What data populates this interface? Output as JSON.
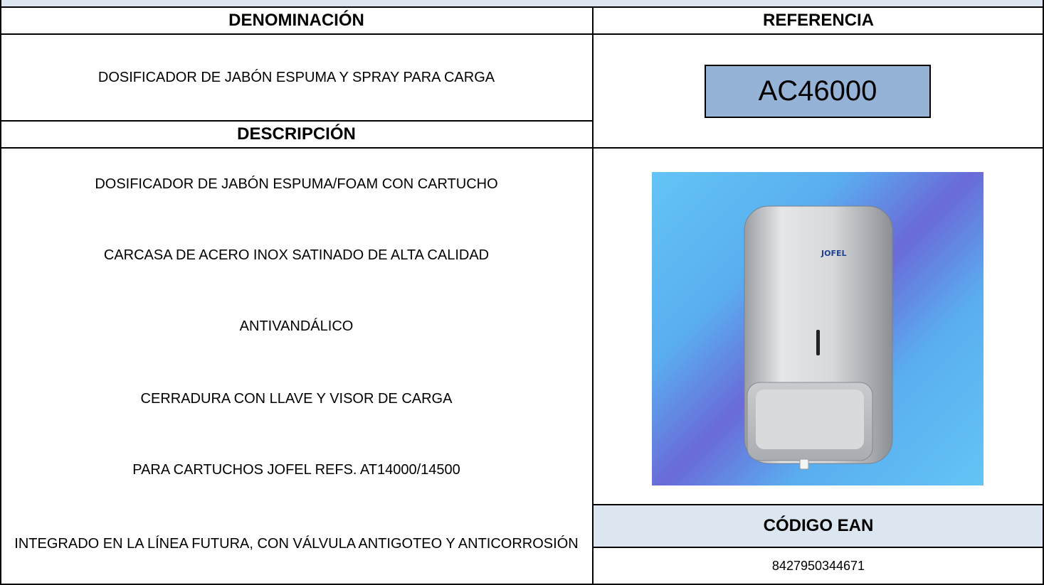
{
  "headers": {
    "denominacion": "DENOMINACIÓN",
    "referencia": "REFERENCIA",
    "descripcion": "DESCRIPCIÓN",
    "codigo_ean": "CÓDIGO EAN"
  },
  "denominacion": "DOSIFICADOR DE JABÓN ESPUMA Y SPRAY PARA CARGA",
  "referencia": "AC46000",
  "descripcion": [
    "DOSIFICADOR DE JABÓN ESPUMA/FOAM CON CARTUCHO",
    "CARCASA DE ACERO INOX SATINADO DE ALTA CALIDAD",
    "ANTIVANDÁLICO",
    "CERRADURA CON LLAVE Y VISOR DE CARGA",
    "PARA CARTUCHOS JOFEL REFS. AT14000/14500",
    "INTEGRADO EN LA LÍNEA FUTURA, CON VÁLVULA ANTIGOTEO Y ANTICORROSIÓN"
  ],
  "image": {
    "logo": "JOFEL"
  },
  "codigo_ean": "8427950344671"
}
